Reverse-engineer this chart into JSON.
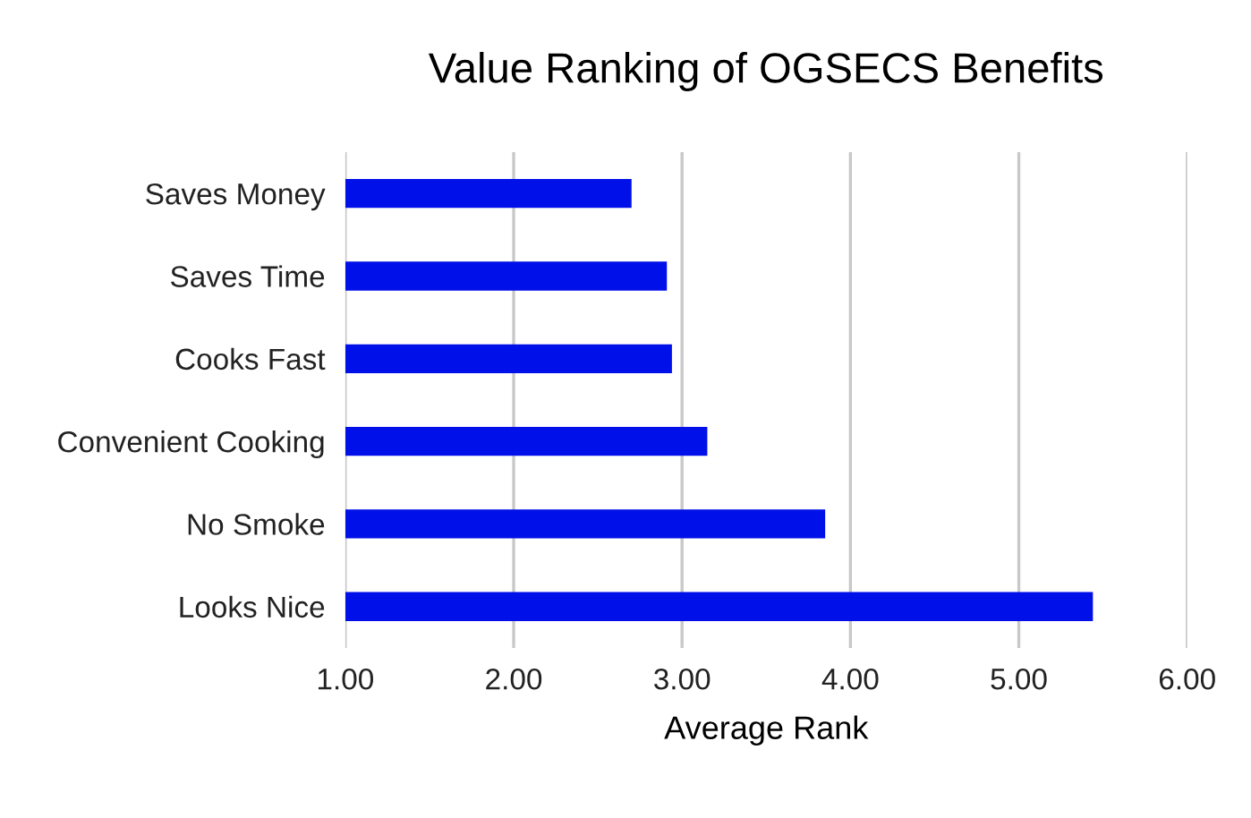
{
  "chart_data": {
    "type": "bar",
    "orientation": "horizontal",
    "title": "Value Ranking of OGSECS Benefits",
    "xlabel": "Average Rank",
    "categories": [
      "Saves Money",
      "Saves Time",
      "Cooks Fast",
      "Convenient Cooking",
      "No Smoke",
      "Looks Nice"
    ],
    "values": [
      2.7,
      2.91,
      2.94,
      3.15,
      3.85,
      5.44
    ],
    "color": "#0010e8",
    "xlim": [
      1,
      6
    ],
    "xticks": [
      {
        "value": 1,
        "label": "1.00"
      },
      {
        "value": 2,
        "label": "2.00"
      },
      {
        "value": 3,
        "label": "3.00"
      },
      {
        "value": 4,
        "label": "4.00"
      },
      {
        "value": 5,
        "label": "5.00"
      },
      {
        "value": 6,
        "label": "6.00"
      }
    ],
    "grid": "x"
  }
}
